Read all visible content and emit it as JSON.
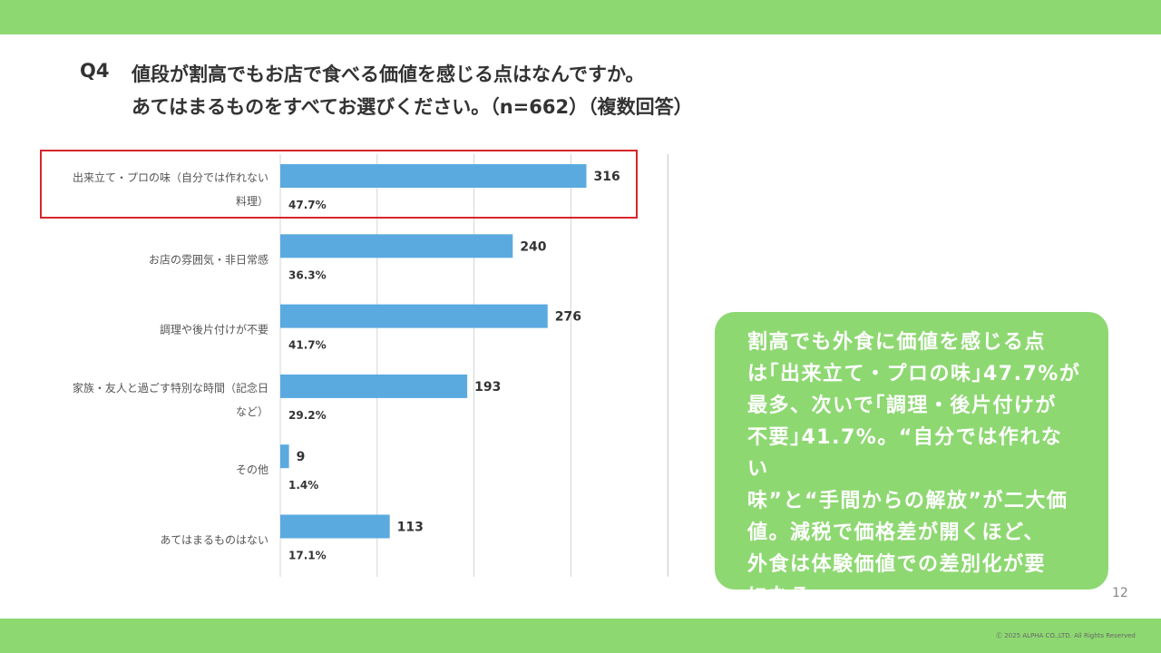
{
  "question": {
    "label": "Q4",
    "line1": "値段が割高でもお店で食べる価値を感じる点はなんですか。",
    "line2": "あてはまるものをすべてお選びください。（n=662）（複数回答）"
  },
  "chart_data": {
    "type": "bar",
    "orientation": "horizontal",
    "categories": [
      [
        "出来立て・プロの味（自分では作れない",
        "料理）"
      ],
      [
        "お店の雰囲気・非日常感"
      ],
      [
        "調理や後片付けが不要"
      ],
      [
        "家族・友人と過ごす特別な時間（記念日",
        "など）"
      ],
      [
        "その他"
      ],
      [
        "あてはまるものはない"
      ]
    ],
    "values": [
      316,
      240,
      276,
      193,
      9,
      113
    ],
    "percents": [
      "47.7%",
      "36.3%",
      "41.7%",
      "29.2%",
      "1.4%",
      "17.1%"
    ],
    "xlim": [
      0,
      400
    ],
    "grid": true,
    "highlighted_category_index": 0,
    "bar_color": "#5aaadf"
  },
  "summary": {
    "lines": [
      "割高でも外食に価値を感じる点",
      "は｢出来立て・プロの味｣47.7%が",
      "最多、次いで｢調理・後片付けが",
      "不要｣41.7%。“自分では作れない",
      "味”と“手間からの解放”が二大価",
      "値。減税で価格差が開くほど、",
      "外食は体験価値での差別化が要",
      "になる。"
    ]
  },
  "page_number": "12",
  "copyright": "Ⓒ 2025 ALPHA CO.,LTD. All Rights Reserved",
  "colors": {
    "accent_green": "#8ed872",
    "highlight_red": "#d7262b",
    "bar_blue": "#5aaadf"
  }
}
